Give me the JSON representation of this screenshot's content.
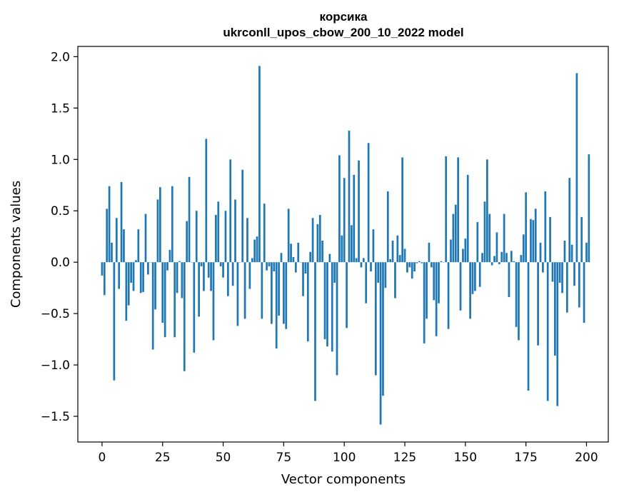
{
  "chart_data": {
    "type": "bar",
    "title": "корсика",
    "subtitle": "ukrconll_upos_cbow_200_10_2022 model",
    "xlabel": "Vector components",
    "ylabel": "Components values",
    "xlim": [
      -10,
      209
    ],
    "ylim": [
      -1.75,
      2.1
    ],
    "xticks": [
      0,
      25,
      50,
      75,
      100,
      125,
      150,
      175,
      200
    ],
    "yticks": [
      -1.5,
      -1.0,
      -0.5,
      0.0,
      0.5,
      1.0,
      1.5,
      2.0
    ],
    "xtick_labels": [
      "0",
      "25",
      "50",
      "75",
      "100",
      "125",
      "150",
      "175",
      "200"
    ],
    "ytick_labels": [
      "−1.5",
      "−1.0",
      "−0.5",
      "0.0",
      "0.5",
      "1.0",
      "1.5",
      "2.0"
    ],
    "bar_color": "#1f77b4",
    "grid": false,
    "values": [
      -0.13,
      -0.32,
      0.52,
      0.74,
      0.19,
      -1.15,
      0.43,
      -0.26,
      0.78,
      0.32,
      -0.57,
      -0.42,
      -0.2,
      -0.28,
      0.02,
      0.32,
      -0.3,
      -0.29,
      0.47,
      -0.12,
      0.0,
      -0.85,
      -0.46,
      0.61,
      0.73,
      -0.59,
      -0.73,
      -0.08,
      0.12,
      0.74,
      -0.73,
      -0.3,
      0.01,
      -0.35,
      -1.06,
      0.4,
      0.83,
      0.0,
      -0.88,
      0.5,
      -0.53,
      -0.04,
      -0.28,
      1.2,
      -0.15,
      -0.28,
      -0.76,
      0.46,
      0.59,
      -0.04,
      -0.15,
      0.5,
      -0.33,
      1.0,
      -0.23,
      0.61,
      -0.62,
      0.0,
      0.9,
      -0.55,
      0.43,
      -0.26,
      0.04,
      0.22,
      0.25,
      1.91,
      -0.55,
      0.57,
      -0.08,
      -0.04,
      -0.6,
      -0.09,
      -0.84,
      -0.52,
      0.09,
      -0.6,
      -0.65,
      0.52,
      0.18,
      0.05,
      -0.1,
      0.19,
      0.0,
      -0.33,
      -0.11,
      -0.77,
      0.1,
      0.43,
      -1.35,
      0.37,
      0.46,
      0.21,
      -0.75,
      -0.82,
      0.08,
      -0.87,
      -0.2,
      -1.1,
      1.04,
      0.26,
      0.82,
      -0.64,
      1.28,
      0.36,
      0.85,
      0.04,
      0.99,
      -0.05,
      0.04,
      -0.4,
      1.16,
      -0.09,
      0.32,
      -1.1,
      -0.2,
      -1.58,
      -1.3,
      -0.25,
      0.69,
      0.03,
      0.21,
      -0.35,
      0.26,
      0.07,
      1.02,
      0.13,
      -0.1,
      -0.05,
      -0.16,
      -0.09,
      -0.01,
      0.01,
      -0.01,
      -0.79,
      -0.55,
      0.19,
      -0.05,
      -0.37,
      -0.72,
      -0.4,
      0.01,
      0.0,
      1.03,
      -0.65,
      0.22,
      0.47,
      0.56,
      1.02,
      -0.47,
      0.13,
      0.23,
      0.85,
      -0.55,
      -0.31,
      -0.28,
      0.39,
      -0.24,
      0.09,
      0.59,
      1.0,
      0.47,
      -0.03,
      0.06,
      0.29,
      -0.02,
      0.1,
      0.47,
      0.09,
      -0.34,
      0.11,
      0.01,
      -0.63,
      -0.76,
      0.07,
      0.27,
      0.68,
      -1.25,
      0.42,
      0.41,
      0.52,
      -0.81,
      0.19,
      -0.1,
      0.69,
      -1.35,
      0.44,
      -0.19,
      -0.91,
      -1.4,
      -0.2,
      -0.3,
      0.21,
      -0.49,
      0.82,
      0.17,
      -0.23,
      1.84,
      -0.44,
      0.44,
      -0.59,
      0.19,
      1.05
    ]
  }
}
